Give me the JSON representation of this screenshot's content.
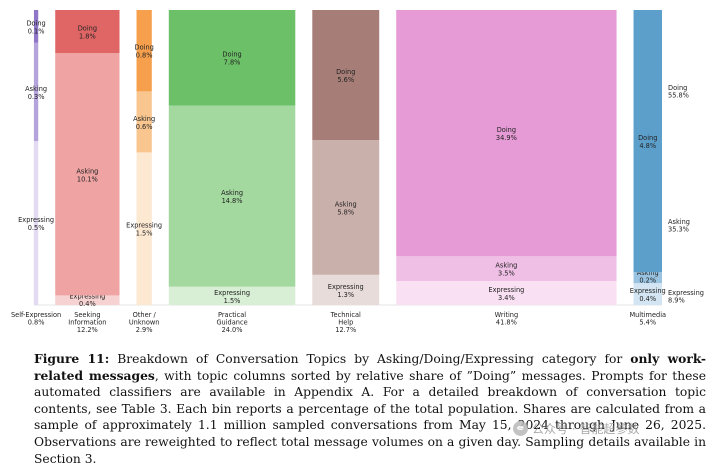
{
  "chart_data": {
    "type": "bar",
    "variant": "mosaic-stacked",
    "segment_order_bottom_to_top": [
      "Expressing",
      "Asking",
      "Doing"
    ],
    "columns": [
      {
        "name_lines": [
          "Self-Expression"
        ],
        "pct": "0.8%",
        "width_share": 0.8,
        "segments": {
          "Doing": {
            "value": 0.1,
            "text": "0.1%",
            "color": "#8f76c9"
          },
          "Asking": {
            "value": 0.3,
            "text": "0.3%",
            "color": "#b5a4dc"
          },
          "Expressing": {
            "value": 0.5,
            "text": "0.5%",
            "color": "#e3dbf3"
          }
        }
      },
      {
        "name_lines": [
          "Seeking",
          "Information"
        ],
        "pct": "12.2%",
        "width_share": 12.2,
        "segments": {
          "Doing": {
            "value": 1.8,
            "text": "1.8%",
            "color": "#e06666"
          },
          "Asking": {
            "value": 10.1,
            "text": "10.1%",
            "color": "#efa3a3"
          },
          "Expressing": {
            "value": 0.4,
            "text": "0.4%",
            "color": "#f7d2d2"
          }
        }
      },
      {
        "name_lines": [
          "Other /",
          "Unknown"
        ],
        "pct": "2.9%",
        "width_share": 2.9,
        "segments": {
          "Doing": {
            "value": 0.8,
            "text": "0.8%",
            "color": "#f6a04d"
          },
          "Asking": {
            "value": 0.6,
            "text": "0.6%",
            "color": "#f9c690"
          },
          "Expressing": {
            "value": 1.5,
            "text": "1.5%",
            "color": "#fde8d2"
          }
        }
      },
      {
        "name_lines": [
          "Practical",
          "Guidance"
        ],
        "pct": "24.0%",
        "width_share": 24.0,
        "segments": {
          "Doing": {
            "value": 7.8,
            "text": "7.8%",
            "color": "#6cc068"
          },
          "Asking": {
            "value": 14.8,
            "text": "14.8%",
            "color": "#a3d89f"
          },
          "Expressing": {
            "value": 1.5,
            "text": "1.5%",
            "color": "#d8eed5"
          }
        }
      },
      {
        "name_lines": [
          "Technical",
          "Help"
        ],
        "pct": "12.7%",
        "width_share": 12.7,
        "segments": {
          "Doing": {
            "value": 5.6,
            "text": "5.6%",
            "color": "#a77e77"
          },
          "Asking": {
            "value": 5.8,
            "text": "5.8%",
            "color": "#cab0ab"
          },
          "Expressing": {
            "value": 1.3,
            "text": "1.3%",
            "color": "#e8dcda"
          }
        }
      },
      {
        "name_lines": [
          "Writing"
        ],
        "pct": "41.8%",
        "width_share": 41.8,
        "segments": {
          "Doing": {
            "value": 34.9,
            "text": "34.9%",
            "color": "#e69ad6"
          },
          "Asking": {
            "value": 3.5,
            "text": "3.5%",
            "color": "#f0bfe6"
          },
          "Expressing": {
            "value": 3.4,
            "text": "3.4%",
            "color": "#f9e1f3"
          }
        }
      },
      {
        "name_lines": [
          "Multimedia"
        ],
        "pct": "5.4%",
        "width_share": 5.4,
        "segments": {
          "Doing": {
            "value": 4.8,
            "text": "4.8%",
            "color": "#5c9fcb"
          },
          "Asking": {
            "value": 0.2,
            "text": "0.2%",
            "color": "#99c3e0"
          },
          "Expressing": {
            "value": 0.4,
            "text": "0.4%",
            "color": "#d3e5f2"
          }
        }
      }
    ],
    "totals": [
      {
        "category": "Doing",
        "text": "55.8%",
        "value": 55.8
      },
      {
        "category": "Asking",
        "text": "35.3%",
        "value": 35.3
      },
      {
        "category": "Expressing",
        "text": "8.9%",
        "value": 8.9
      }
    ],
    "title": "",
    "xlabel": "",
    "ylabel": "",
    "grid": false,
    "legend": "none"
  },
  "caption": {
    "label": "Figure 11:",
    "part1": "Breakdown of Conversation Topics by Asking/Doing/Expressing category for",
    "bold": "only work-related messages",
    "part2": ", with topic columns sorted by relative share of ”Doing” messages. Prompts for these automated classifiers are available in Appendix A. For a detailed breakdown of conversation topic contents, see Table 3. Each bin reports a percentage of the total population. Shares are calculated from a sample of approximately 1.1 million sampled conversations from May 15, 2024 through June 26, 2025. Observations are reweighted to reflect total message volumes on a given day. Sampling details available in Section 3."
  },
  "watermark": {
    "text": "公众号 · 智能超参数"
  }
}
